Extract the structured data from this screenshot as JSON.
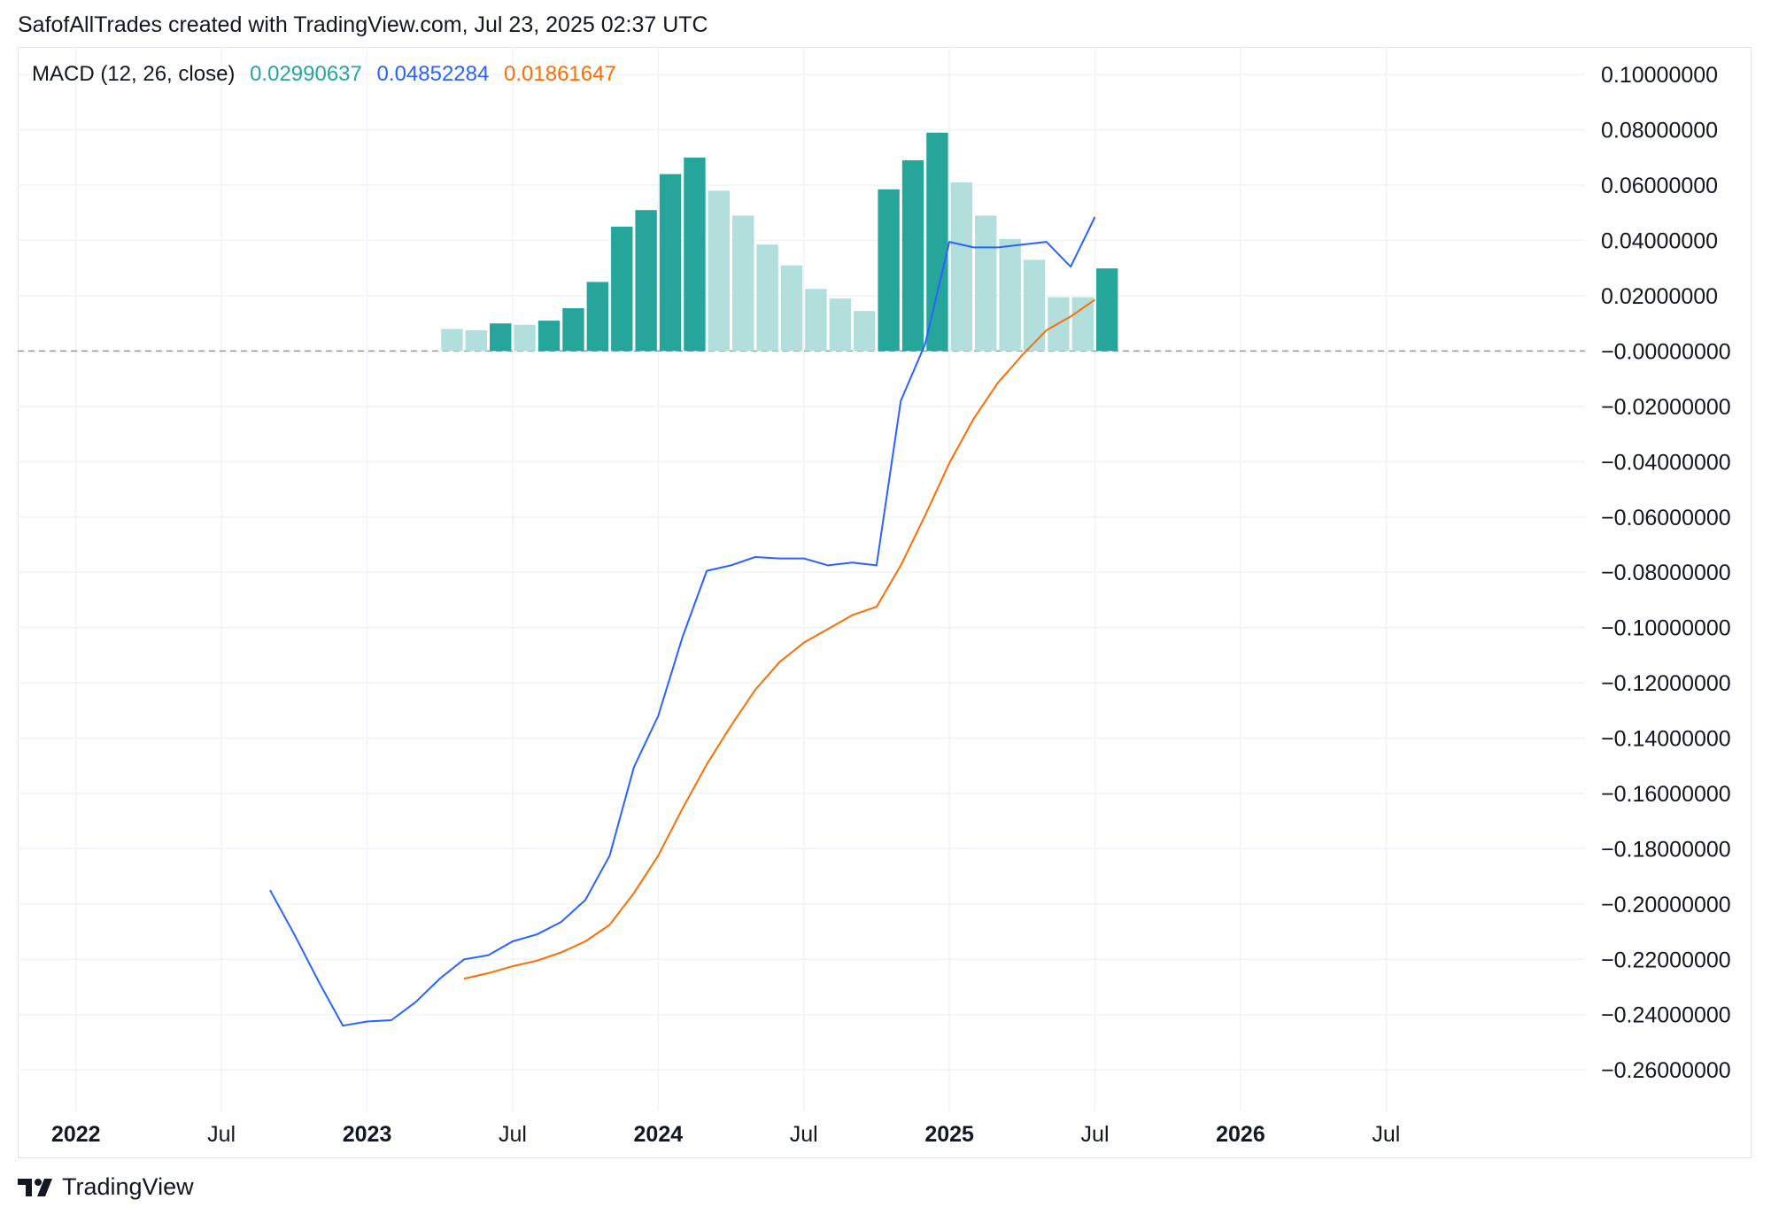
{
  "attribution": "SafofAllTrades created with TradingView.com, Jul 23, 2025 02:37 UTC",
  "footer": {
    "brand": "TradingView",
    "logo_icon": "tradingview-logo-icon"
  },
  "colors": {
    "histogram_strong": "#26a69a",
    "histogram_weak": "#b2dfdb",
    "macd_line": "#2962ff",
    "signal_line": "#ff6d00",
    "grid": "#f0f3fa",
    "zero_line": "#9598a1"
  },
  "chart_data": {
    "type": "line",
    "title": "MACD (12, 26, close)",
    "legend_values": {
      "histogram": "0.02990637",
      "macd": "0.04852284",
      "signal": "0.01861647"
    },
    "x_ticks": [
      {
        "label": "2022",
        "t": 0,
        "bold": true
      },
      {
        "label": "Jul",
        "t": 6,
        "bold": false
      },
      {
        "label": "2023",
        "t": 12,
        "bold": true
      },
      {
        "label": "Jul",
        "t": 18,
        "bold": false
      },
      {
        "label": "2024",
        "t": 24,
        "bold": true
      },
      {
        "label": "Jul",
        "t": 30,
        "bold": false
      },
      {
        "label": "2025",
        "t": 36,
        "bold": true
      },
      {
        "label": "Jul",
        "t": 42,
        "bold": false
      },
      {
        "label": "2026",
        "t": 48,
        "bold": true
      },
      {
        "label": "Jul",
        "t": 54,
        "bold": false
      }
    ],
    "x_range": [
      -2.4,
      62.2
    ],
    "y_ticks": [
      "0.10000000",
      "0.08000000",
      "0.06000000",
      "0.04000000",
      "0.02000000",
      "−0.00000000",
      "−0.02000000",
      "−0.04000000",
      "−0.06000000",
      "−0.08000000",
      "−0.10000000",
      "−0.12000000",
      "−0.14000000",
      "−0.16000000",
      "−0.18000000",
      "−0.20000000",
      "−0.22000000",
      "−0.24000000",
      "−0.26000000"
    ],
    "y_range": [
      -0.275,
      0.11
    ],
    "series": [
      {
        "name": "Histogram",
        "kind": "histogram",
        "t": [
          15.5,
          16.5,
          17.5,
          18.5,
          19.5,
          20.5,
          21.5,
          22.5,
          23.5,
          24.5,
          25.5,
          26.5,
          27.5,
          28.5,
          29.5,
          30.5,
          31.5,
          32.5,
          33.5,
          34.5,
          35.5,
          36.5,
          37.5,
          38.5,
          39.5,
          40.5,
          41.5,
          42.5
        ],
        "values": [
          0.008,
          0.0075,
          0.01,
          0.0095,
          0.011,
          0.0155,
          0.025,
          0.045,
          0.051,
          0.064,
          0.07,
          0.058,
          0.049,
          0.0385,
          0.031,
          0.0225,
          0.019,
          0.0145,
          0.0585,
          0.069,
          0.079,
          0.061,
          0.049,
          0.0405,
          0.033,
          0.0195,
          0.0195,
          0.0299
        ],
        "strong": [
          false,
          false,
          true,
          false,
          true,
          true,
          true,
          true,
          true,
          true,
          true,
          false,
          false,
          false,
          false,
          false,
          false,
          false,
          true,
          true,
          true,
          false,
          false,
          false,
          false,
          false,
          false,
          true
        ]
      },
      {
        "name": "MACD",
        "kind": "line",
        "t": [
          8,
          9,
          10,
          11,
          12,
          13,
          14,
          15,
          16,
          17,
          18,
          19,
          20,
          21,
          22,
          23,
          24,
          25,
          26,
          27,
          28,
          29,
          30,
          31,
          32,
          33,
          34,
          35,
          36,
          37,
          38,
          39,
          40,
          41,
          42
        ],
        "values": [
          -0.195,
          -0.211,
          -0.228,
          -0.244,
          -0.2425,
          -0.242,
          -0.2355,
          -0.227,
          -0.22,
          -0.2185,
          -0.2135,
          -0.211,
          -0.2065,
          -0.1985,
          -0.1825,
          -0.1505,
          -0.132,
          -0.1035,
          -0.0795,
          -0.0775,
          -0.0745,
          -0.075,
          -0.075,
          -0.0775,
          -0.0765,
          -0.0775,
          -0.018,
          0.0025,
          0.0395,
          0.0375,
          0.0375,
          0.0385,
          0.0395,
          0.0305,
          0.0485
        ]
      },
      {
        "name": "Signal",
        "kind": "line",
        "t": [
          16,
          17,
          18,
          19,
          20,
          21,
          22,
          23,
          24,
          25,
          26,
          27,
          28,
          29,
          30,
          31,
          32,
          33,
          34,
          35,
          36,
          37,
          38,
          39,
          40,
          41,
          42
        ],
        "values": [
          -0.227,
          -0.225,
          -0.2225,
          -0.2205,
          -0.2175,
          -0.2135,
          -0.2075,
          -0.196,
          -0.1825,
          -0.1655,
          -0.1495,
          -0.1355,
          -0.1225,
          -0.1125,
          -0.1055,
          -0.1005,
          -0.0955,
          -0.0925,
          -0.0775,
          -0.0595,
          -0.0405,
          -0.0245,
          -0.0115,
          -0.0015,
          0.0075,
          0.0125,
          0.0186
        ]
      }
    ]
  }
}
